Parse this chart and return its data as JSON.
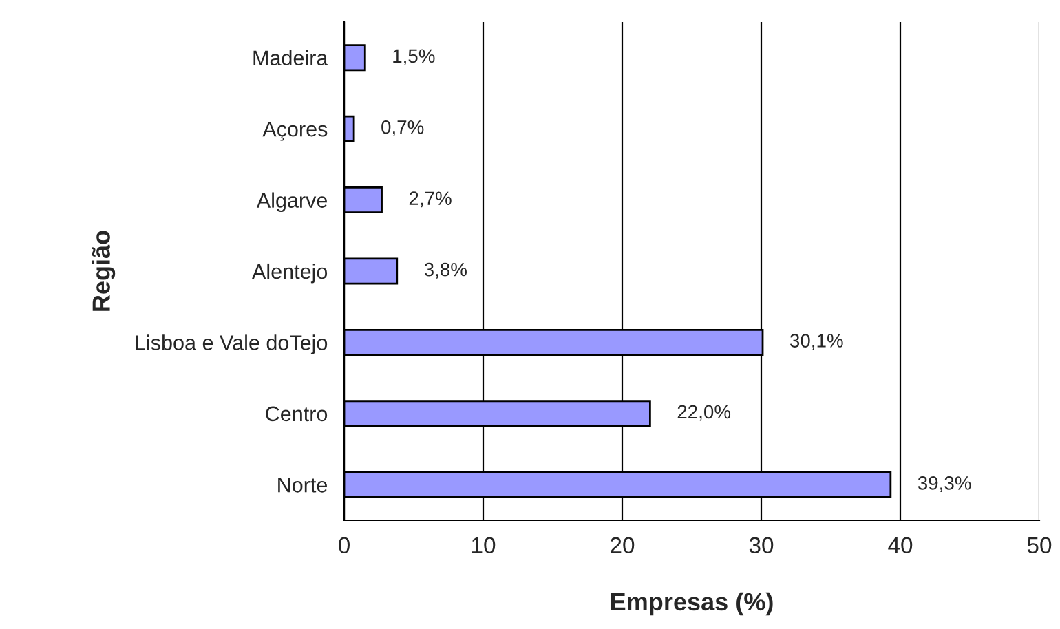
{
  "chart_data": {
    "type": "bar",
    "orientation": "horizontal",
    "xlabel": "Empresas (%)",
    "ylabel": "Região",
    "categories": [
      "Madeira",
      "Açores",
      "Algarve",
      "Alentejo",
      "Lisboa e Vale doTejo",
      "Centro",
      "Norte"
    ],
    "values": [
      1.5,
      0.7,
      2.7,
      3.8,
      30.1,
      22.0,
      39.3
    ],
    "value_labels": [
      "1,5%",
      "0,7%",
      "2,7%",
      "3,8%",
      "30,1%",
      "22,0%",
      "39,3%"
    ],
    "color": "#9999ff",
    "xlim": [
      0,
      50
    ],
    "xticks": [
      0,
      10,
      20,
      30,
      40,
      50
    ],
    "grid": "x",
    "legend": false
  }
}
